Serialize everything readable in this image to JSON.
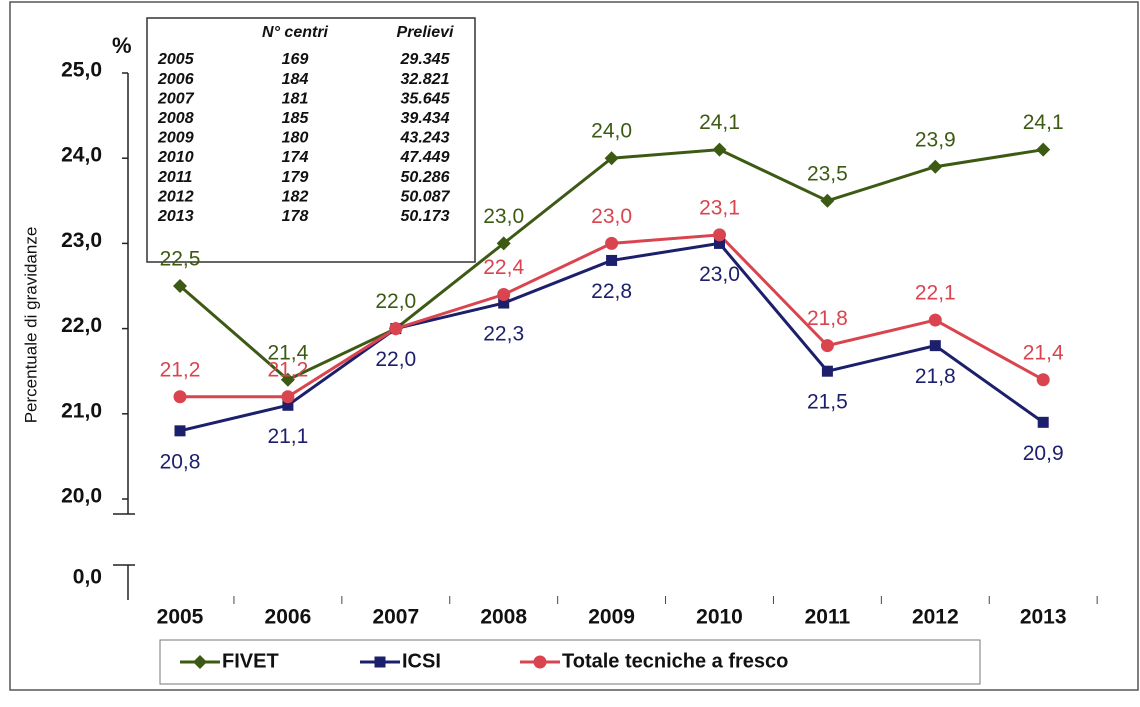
{
  "chart_data": {
    "type": "line",
    "y_unit": "%",
    "y_axis_label": "Percentuale di gravidanze",
    "categories": [
      "2005",
      "2006",
      "2007",
      "2008",
      "2009",
      "2010",
      "2011",
      "2012",
      "2013"
    ],
    "ylim": [
      20,
      25
    ],
    "yticks": [
      {
        "value": 20,
        "label": "20,0"
      },
      {
        "value": 21,
        "label": "21,0"
      },
      {
        "value": 22,
        "label": "22,0"
      },
      {
        "value": 23,
        "label": "23,0"
      },
      {
        "value": 24,
        "label": "24,0"
      },
      {
        "value": 25,
        "label": "25,0"
      }
    ],
    "axis_break_tick": {
      "value": 0,
      "label": "0,0"
    },
    "series": [
      {
        "name": "FIVET",
        "color": "#3d5a14",
        "marker": "diamond",
        "values": [
          22.5,
          21.4,
          22.0,
          23.0,
          24.0,
          24.1,
          23.5,
          23.9,
          24.1
        ],
        "value_labels": [
          "22,5",
          "21,4",
          "22,0",
          "23,0",
          "24,0",
          "24,1",
          "23,5",
          "23,9",
          "24,1"
        ]
      },
      {
        "name": "ICSI",
        "color": "#1c1f6b",
        "marker": "square",
        "values": [
          20.8,
          21.1,
          22.0,
          22.3,
          22.8,
          23.0,
          21.5,
          21.8,
          20.9
        ],
        "value_labels": [
          "20,8",
          "21,1",
          "22,0",
          "22,3",
          "22,8",
          "23,0",
          "21,5",
          "21,8",
          "20,9"
        ]
      },
      {
        "name": "Totale tecniche a fresco",
        "color": "#d9444f",
        "marker": "circle",
        "values": [
          21.2,
          21.2,
          22.0,
          22.4,
          23.0,
          23.1,
          21.8,
          22.1,
          21.4
        ],
        "value_labels": [
          "21,2",
          "21,2",
          null,
          "22,4",
          "23,0",
          "23,1",
          "21,8",
          "22,1",
          "21,4"
        ]
      }
    ],
    "inset_table": {
      "columns": [
        "N° centri",
        "Prelievi"
      ],
      "rows": [
        [
          "2005",
          "169",
          "29.345"
        ],
        [
          "2006",
          "184",
          "32.821"
        ],
        [
          "2007",
          "181",
          "35.645"
        ],
        [
          "2008",
          "185",
          "39.434"
        ],
        [
          "2009",
          "180",
          "43.243"
        ],
        [
          "2010",
          "174",
          "47.449"
        ],
        [
          "2011",
          "179",
          "50.286"
        ],
        [
          "2012",
          "182",
          "50.087"
        ],
        [
          "2013",
          "178",
          "50.173"
        ]
      ]
    }
  }
}
